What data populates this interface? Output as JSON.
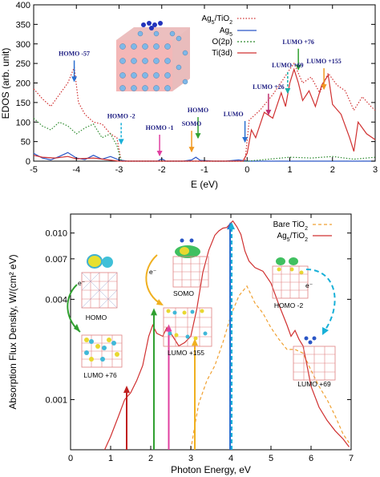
{
  "chart_data": [
    {
      "type": "line",
      "xlabel": "E (eV)",
      "ylabel": "EDOS (arb. unit)",
      "xlim": [
        -5,
        3
      ],
      "ylim": [
        0,
        400
      ],
      "x_ticks": [
        "-5",
        "-4",
        "-3",
        "-2",
        "-1",
        "0",
        "1",
        "2",
        "3"
      ],
      "y_ticks": [
        "0",
        "50",
        "100",
        "150",
        "200",
        "250",
        "300",
        "350",
        "400"
      ],
      "legend_position": "top-center",
      "series": [
        {
          "name": "Ag5/TiO2",
          "color": "#d03030",
          "style": "dotted",
          "x": [
            -5,
            -4.8,
            -4.6,
            -4.4,
            -4.2,
            -4.05,
            -3.95,
            -3.8,
            -3.6,
            -3.4,
            -3.2,
            -3.05,
            -2.95,
            -2.5,
            -2.0,
            -1.5,
            -1.0,
            -0.5,
            -0.05,
            0.05,
            0.3,
            0.6,
            0.85,
            1.0,
            1.1,
            1.3,
            1.5,
            1.7,
            1.9,
            2.1,
            2.3,
            2.5,
            2.7,
            2.9,
            3.0
          ],
          "y": [
            185,
            160,
            140,
            170,
            200,
            240,
            150,
            120,
            100,
            95,
            70,
            60,
            0,
            0,
            0,
            0,
            0,
            0,
            0,
            105,
            130,
            170,
            210,
            235,
            250,
            200,
            215,
            175,
            225,
            195,
            180,
            130,
            165,
            140,
            130
          ]
        },
        {
          "name": "Ag5",
          "color": "#2a56c6",
          "style": "solid",
          "x": [
            -5,
            -4.8,
            -4.6,
            -4.4,
            -4.2,
            -4.0,
            -3.8,
            -3.6,
            -3.4,
            -3.2,
            -3.0,
            -2.8,
            -2.5,
            -2.1,
            -2.0,
            -1.9,
            -1.5,
            -1.3,
            -1.2,
            -1.1,
            -0.8,
            -0.5,
            -0.2,
            0,
            1,
            2,
            3
          ],
          "y": [
            20,
            8,
            3,
            12,
            22,
            8,
            4,
            15,
            5,
            12,
            3,
            0,
            0,
            0,
            6,
            0,
            0,
            3,
            10,
            2,
            0,
            0,
            3,
            0,
            0,
            0,
            0
          ]
        },
        {
          "name": "O(2p)",
          "color": "#2e8b2e",
          "style": "dotted",
          "x": [
            -5,
            -4.8,
            -4.6,
            -4.4,
            -4.2,
            -4.0,
            -3.8,
            -3.6,
            -3.4,
            -3.2,
            -3.05,
            -2.95,
            -2.5,
            -2.0,
            -1.0,
            0.0,
            0.5,
            1.0,
            1.5,
            2.0,
            2.5,
            3.0
          ],
          "y": [
            110,
            90,
            80,
            100,
            90,
            70,
            85,
            95,
            60,
            70,
            40,
            0,
            0,
            0,
            0,
            0,
            5,
            10,
            8,
            12,
            5,
            10
          ]
        },
        {
          "name": "Ti(3d)",
          "color": "#d03030",
          "style": "solid",
          "x": [
            -5,
            -4.8,
            -4.5,
            -4.2,
            -4.0,
            -3.6,
            -3.3,
            -3.0,
            -2.0,
            -1.0,
            -0.1,
            0.0,
            0.1,
            0.2,
            0.4,
            0.6,
            0.8,
            0.9,
            1.0,
            1.1,
            1.2,
            1.3,
            1.45,
            1.6,
            1.75,
            1.9,
            2.0,
            2.2,
            2.4,
            2.5,
            2.6,
            2.8,
            3.0
          ],
          "y": [
            15,
            10,
            8,
            12,
            6,
            8,
            4,
            0,
            0,
            0,
            0,
            20,
            80,
            60,
            125,
            110,
            175,
            140,
            200,
            235,
            200,
            155,
            180,
            140,
            195,
            220,
            145,
            120,
            60,
            25,
            100,
            70,
            55
          ]
        }
      ],
      "annotations": [
        {
          "text": "HOMO -57",
          "x": -4.05,
          "y": 270,
          "color": "#2a6fd0"
        },
        {
          "text": "HOMO -2",
          "x": -2.95,
          "y": 110,
          "color": "#18b0d8"
        },
        {
          "text": "HOMO -1",
          "x": -2.05,
          "y": 80,
          "color": "#e040a0"
        },
        {
          "text": "SOMO",
          "x": -1.3,
          "y": 90,
          "color": "#f09820"
        },
        {
          "text": "HOMO",
          "x": -1.15,
          "y": 125,
          "color": "#30a030"
        },
        {
          "text": "LUMO",
          "x": -0.05,
          "y": 115,
          "color": "#2a6fd0"
        },
        {
          "text": "LUMO +26",
          "x": 0.5,
          "y": 185,
          "color": "#c03070"
        },
        {
          "text": "LUMO +69",
          "x": 0.95,
          "y": 240,
          "color": "#18b0a8"
        },
        {
          "text": "LUMO +76",
          "x": 1.2,
          "y": 300,
          "color": "#30a030"
        },
        {
          "text": "LUMO +155",
          "x": 1.8,
          "y": 250,
          "color": "#f09820"
        }
      ]
    },
    {
      "type": "line",
      "xlabel": "Photon Energy, eV",
      "ylabel": "Absorption Flux Density, W/(cm² eV)",
      "xlim": [
        0,
        7
      ],
      "ylim": [
        0.0005,
        0.013
      ],
      "log_scale_y": true,
      "x_ticks": [
        "0",
        "1",
        "2",
        "3",
        "4",
        "5",
        "6",
        "7"
      ],
      "y_ticks": [
        "0.001",
        "0.004",
        "0.007",
        "0.010"
      ],
      "legend_position": "top-right",
      "series": [
        {
          "name": "Bare TiO2",
          "color": "#f0a030",
          "style": "dashed",
          "x": [
            3.0,
            3.1,
            3.2,
            3.4,
            3.6,
            3.8,
            4.0,
            4.2,
            4.4,
            4.6,
            4.8,
            5.0,
            5.2,
            5.4,
            5.6,
            5.8,
            6.0,
            6.2,
            6.4,
            6.6,
            6.8,
            6.95
          ],
          "y": [
            0.0005,
            0.0007,
            0.00095,
            0.0013,
            0.0016,
            0.0022,
            0.0032,
            0.0042,
            0.0048,
            0.0038,
            0.0033,
            0.0027,
            0.0023,
            0.002,
            0.002,
            0.0019,
            0.0015,
            0.0012,
            0.001,
            0.0008,
            0.00062,
            0.00055
          ]
        },
        {
          "name": "Ag5/TiO2",
          "color": "#d03030",
          "style": "solid",
          "x": [
            0.85,
            1.0,
            1.2,
            1.35,
            1.5,
            1.65,
            1.8,
            1.95,
            2.05,
            2.15,
            2.3,
            2.4,
            2.55,
            2.7,
            2.85,
            3.0,
            3.15,
            3.3,
            3.45,
            3.6,
            3.7,
            3.8,
            3.9,
            4.0,
            4.05,
            4.15,
            4.25,
            4.35,
            4.45,
            4.6,
            4.8,
            5.0,
            5.2,
            5.4,
            5.5,
            5.6,
            5.7,
            5.8,
            5.9,
            6.0,
            6.2,
            6.4,
            6.6,
            6.8,
            6.95
          ],
          "y": [
            0.0005,
            0.0006,
            0.0008,
            0.001,
            0.0011,
            0.0013,
            0.0016,
            0.0024,
            0.0028,
            0.0025,
            0.0024,
            0.0027,
            0.0024,
            0.0021,
            0.0022,
            0.0024,
            0.0035,
            0.0058,
            0.0079,
            0.0097,
            0.0103,
            0.0107,
            0.0108,
            0.0115,
            0.0118,
            0.0109,
            0.0098,
            0.0078,
            0.0068,
            0.0062,
            0.0059,
            0.005,
            0.0037,
            0.0028,
            0.0024,
            0.0026,
            0.0023,
            0.0021,
            0.0016,
            0.0012,
            0.0009,
            0.00075,
            0.00065,
            0.00058,
            0.00052
          ]
        }
      ],
      "arrows": [
        {
          "x": 1.4,
          "y_top": 0.0012,
          "color": "#c02020"
        },
        {
          "x": 2.08,
          "y_top": 0.0035,
          "color": "#30a030"
        },
        {
          "x": 2.45,
          "y_top": 0.0028,
          "color": "#e040a0"
        },
        {
          "x": 3.1,
          "y_top": 0.0023,
          "color": "#f0b020"
        },
        {
          "x": 3.98,
          "y_top": 0.0115,
          "color": "#2a6fd0"
        },
        {
          "x": 4.02,
          "y_top": 0.0115,
          "color": "#18b0d8"
        }
      ],
      "annotations": [
        {
          "text": "HOMO"
        },
        {
          "text": "LUMO +76"
        },
        {
          "text": "SOMO"
        },
        {
          "text": "LUMO +155"
        },
        {
          "text": "HOMO -2"
        },
        {
          "text": "LUMO +69"
        },
        {
          "text": "e⁻"
        }
      ]
    }
  ]
}
